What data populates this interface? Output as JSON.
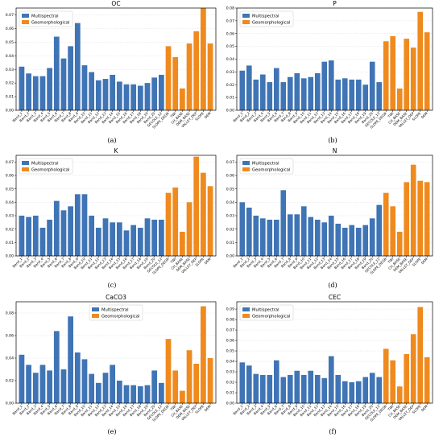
{
  "colors": {
    "multispectral": "#3f74b5",
    "geomorphological": "#ef8a1e"
  },
  "categories": [
    "Band_1",
    "Band_2",
    "Band_3",
    "Band_4",
    "Band_5",
    "Band_6",
    "Band_7",
    "Band_8",
    "Band_9",
    "Band_10",
    "Band_11",
    "Band_12",
    "Band_13",
    "Band_14",
    "Band_15",
    "Band_16",
    "Band_17",
    "Band_18",
    "Band_19",
    "Band_20",
    "GECOLE_12",
    "SLOPE_DEGR",
    "TWI",
    "CH_BASE",
    "DEM_BASE",
    "VALLEY_DEP",
    "SLOPE",
    "DEM"
  ],
  "chart_data": [
    {
      "type": "bar",
      "panel_label": "(a)",
      "title": "OC",
      "ylim": [
        0,
        0.075
      ],
      "yticks": [
        0.0,
        0.01,
        0.02,
        0.03,
        0.04,
        0.05,
        0.06,
        0.07
      ],
      "ytick_labels": [
        "0.00",
        "0.01",
        "0.02",
        "0.03",
        "0.04",
        "0.05",
        "0.06",
        "0.07"
      ],
      "legend_placement": "top-left",
      "series": [
        {
          "name": "Multispectral",
          "categories": [
            "Band_1",
            "Band_2",
            "Band_3",
            "Band_4",
            "Band_5",
            "Band_6",
            "Band_7",
            "Band_8",
            "Band_9",
            "Band_10",
            "Band_11",
            "Band_12",
            "Band_13",
            "Band_14",
            "Band_15",
            "Band_16",
            "Band_17",
            "Band_18",
            "Band_19",
            "Band_20",
            "GECOLE_12"
          ],
          "values": [
            0.032,
            0.027,
            0.025,
            0.025,
            0.031,
            0.054,
            0.038,
            0.047,
            0.064,
            0.033,
            0.028,
            0.022,
            0.023,
            0.026,
            0.021,
            0.019,
            0.019,
            0.018,
            0.02,
            0.024,
            0.026
          ]
        },
        {
          "name": "Geomorphological",
          "categories": [
            "SLOPE_DEGR",
            "TWI",
            "CH_BASE",
            "DEM_BASE",
            "VALLEY_DEP",
            "SLOPE",
            "DEM"
          ],
          "values": [
            0.047,
            0.039,
            0.016,
            0.049,
            0.058,
            0.075,
            0.049
          ]
        }
      ]
    },
    {
      "type": "bar",
      "panel_label": "(b)",
      "title": "P",
      "ylim": [
        0,
        0.08
      ],
      "yticks": [
        0.0,
        0.01,
        0.02,
        0.03,
        0.04,
        0.05,
        0.06,
        0.07,
        0.08
      ],
      "ytick_labels": [
        "0.00",
        "0.01",
        "0.02",
        "0.03",
        "0.04",
        "0.05",
        "0.06",
        "0.07",
        "0.08"
      ],
      "legend_placement": "top-left",
      "series": [
        {
          "name": "Multispectral",
          "categories": [
            "Band_1",
            "Band_2",
            "Band_3",
            "Band_4",
            "Band_5",
            "Band_6",
            "Band_7",
            "Band_8",
            "Band_9",
            "Band_10",
            "Band_11",
            "Band_12",
            "Band_13",
            "Band_14",
            "Band_15",
            "Band_16",
            "Band_17",
            "Band_18",
            "Band_19",
            "Band_20",
            "GECOLE_12"
          ],
          "values": [
            0.031,
            0.035,
            0.024,
            0.028,
            0.022,
            0.033,
            0.022,
            0.026,
            0.029,
            0.025,
            0.026,
            0.029,
            0.038,
            0.039,
            0.024,
            0.025,
            0.024,
            0.024,
            0.02,
            0.038,
            0.022
          ]
        },
        {
          "name": "Geomorphological",
          "categories": [
            "SLOPE_DEGR",
            "TWI",
            "CH_BASE",
            "DEM_BASE",
            "VALLEY_DEP",
            "SLOPE",
            "DEM"
          ],
          "values": [
            0.054,
            0.058,
            0.017,
            0.056,
            0.049,
            0.077,
            0.061
          ]
        }
      ]
    },
    {
      "type": "bar",
      "panel_label": "(c)",
      "title": "K",
      "ylim": [
        0,
        0.075
      ],
      "yticks": [
        0.0,
        0.01,
        0.02,
        0.03,
        0.04,
        0.05,
        0.06,
        0.07
      ],
      "ytick_labels": [
        "0.00",
        "0.01",
        "0.02",
        "0.03",
        "0.04",
        "0.05",
        "0.06",
        "0.07"
      ],
      "legend_placement": "top-left",
      "series": [
        {
          "name": "Multispectral",
          "categories": [
            "Band_1",
            "Band_2",
            "Band_3",
            "Band_4",
            "Band_5",
            "Band_6",
            "Band_7",
            "Band_8",
            "Band_9",
            "Band_10",
            "Band_11",
            "Band_12",
            "Band_13",
            "Band_14",
            "Band_15",
            "Band_16",
            "Band_17",
            "Band_18",
            "Band_19",
            "Band_20",
            "GECOLE_12"
          ],
          "values": [
            0.03,
            0.029,
            0.03,
            0.021,
            0.027,
            0.041,
            0.034,
            0.037,
            0.046,
            0.046,
            0.03,
            0.021,
            0.028,
            0.025,
            0.025,
            0.019,
            0.023,
            0.021,
            0.028,
            0.027,
            0.027
          ]
        },
        {
          "name": "Geomorphological",
          "categories": [
            "SLOPE_DEGR",
            "TWI",
            "CH_BASE",
            "DEM_BASE",
            "VALLEY_DEP",
            "SLOPE",
            "DEM"
          ],
          "values": [
            0.047,
            0.051,
            0.018,
            0.04,
            0.074,
            0.062,
            0.052
          ]
        }
      ]
    },
    {
      "type": "bar",
      "panel_label": "(d)",
      "title": "N",
      "ylim": [
        0,
        0.075
      ],
      "yticks": [
        0.0,
        0.01,
        0.02,
        0.03,
        0.04,
        0.05,
        0.06,
        0.07
      ],
      "ytick_labels": [
        "0.00",
        "0.01",
        "0.02",
        "0.03",
        "0.04",
        "0.05",
        "0.06",
        "0.07"
      ],
      "legend_placement": "top-left",
      "series": [
        {
          "name": "Multispectral",
          "categories": [
            "Band_1",
            "Band_2",
            "Band_3",
            "Band_4",
            "Band_5",
            "Band_6",
            "Band_7",
            "Band_8",
            "Band_9",
            "Band_10",
            "Band_11",
            "Band_12",
            "Band_13",
            "Band_14",
            "Band_15",
            "Band_16",
            "Band_17",
            "Band_18",
            "Band_19",
            "Band_20",
            "GECOLE_12"
          ],
          "values": [
            0.04,
            0.036,
            0.03,
            0.028,
            0.027,
            0.027,
            0.049,
            0.031,
            0.031,
            0.037,
            0.029,
            0.027,
            0.025,
            0.03,
            0.024,
            0.021,
            0.023,
            0.021,
            0.023,
            0.028,
            0.038
          ]
        },
        {
          "name": "Geomorphological",
          "categories": [
            "SLOPE_DEGR",
            "TWI",
            "CH_BASE",
            "DEM_BASE",
            "VALLEY_DEP",
            "SLOPE",
            "DEM"
          ],
          "values": [
            0.047,
            0.037,
            0.018,
            0.055,
            0.068,
            0.056,
            0.055
          ]
        }
      ]
    },
    {
      "type": "bar",
      "panel_label": "(e)",
      "title": "CaCO3",
      "ylim": [
        0,
        0.09
      ],
      "yticks": [
        0.0,
        0.02,
        0.04,
        0.06,
        0.08
      ],
      "ytick_labels": [
        "0.00",
        "0.02",
        "0.04",
        "0.06",
        "0.08"
      ],
      "legend_placement": "top-center",
      "series": [
        {
          "name": "Multispectral",
          "categories": [
            "Band_1",
            "Band_2",
            "Band_3",
            "Band_4",
            "Band_5",
            "Band_6",
            "Band_7",
            "Band_8",
            "Band_9",
            "Band_10",
            "Band_11",
            "Band_12",
            "Band_13",
            "Band_14",
            "Band_15",
            "Band_16",
            "Band_17",
            "Band_18",
            "Band_19",
            "Band_20",
            "GECOLE_12"
          ],
          "values": [
            0.043,
            0.034,
            0.027,
            0.034,
            0.029,
            0.064,
            0.03,
            0.077,
            0.045,
            0.039,
            0.026,
            0.018,
            0.027,
            0.034,
            0.02,
            0.016,
            0.016,
            0.015,
            0.016,
            0.029,
            0.018
          ]
        },
        {
          "name": "Geomorphological",
          "categories": [
            "SLOPE_DEGR",
            "TWI",
            "CH_BASE",
            "DEM_BASE",
            "VALLEY_DEP",
            "SLOPE",
            "DEM"
          ],
          "values": [
            0.057,
            0.029,
            0.011,
            0.047,
            0.035,
            0.086,
            0.04
          ]
        }
      ]
    },
    {
      "type": "bar",
      "panel_label": "(f)",
      "title": "CEC",
      "ylim": [
        0,
        0.097
      ],
      "yticks": [
        0.0,
        0.01,
        0.02,
        0.03,
        0.04,
        0.05,
        0.06,
        0.07,
        0.08,
        0.09
      ],
      "ytick_labels": [
        "0.00",
        "0.01",
        "0.02",
        "0.03",
        "0.04",
        "0.05",
        "0.06",
        "0.07",
        "0.08",
        "0.09"
      ],
      "legend_placement": "top-left",
      "series": [
        {
          "name": "Multispectral",
          "categories": [
            "Band_1",
            "Band_2",
            "Band_3",
            "Band_4",
            "Band_5",
            "Band_6",
            "Band_7",
            "Band_8",
            "Band_9",
            "Band_10",
            "Band_11",
            "Band_12",
            "Band_13",
            "Band_14",
            "Band_15",
            "Band_16",
            "Band_17",
            "Band_18",
            "Band_19",
            "Band_20",
            "GECOLE_12"
          ],
          "values": [
            0.039,
            0.036,
            0.028,
            0.027,
            0.027,
            0.041,
            0.025,
            0.027,
            0.031,
            0.027,
            0.031,
            0.027,
            0.024,
            0.045,
            0.027,
            0.021,
            0.02,
            0.021,
            0.025,
            0.029,
            0.025
          ]
        },
        {
          "name": "Geomorphological",
          "categories": [
            "SLOPE_DEGR",
            "TWI",
            "CH_BASE",
            "DEM_BASE",
            "VALLEY_DEP",
            "SLOPE",
            "DEM"
          ],
          "values": [
            0.052,
            0.041,
            0.016,
            0.047,
            0.066,
            0.092,
            0.044
          ]
        }
      ]
    }
  ]
}
